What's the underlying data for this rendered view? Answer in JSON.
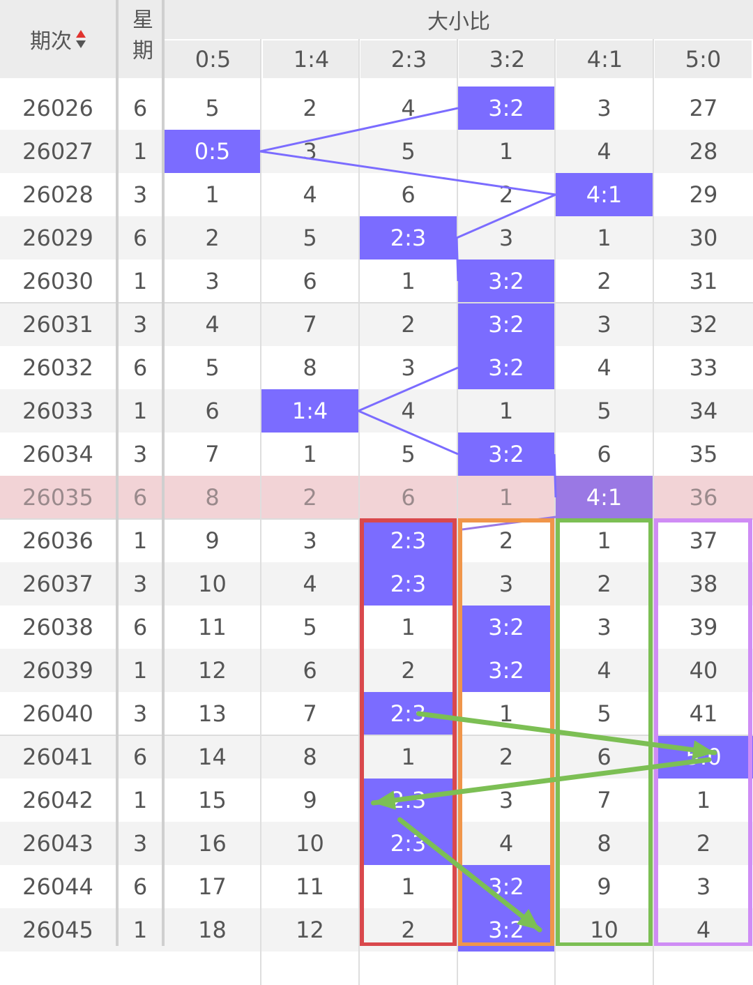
{
  "header": {
    "period_label": "期次",
    "week_label": "星期",
    "group_label": "大小比",
    "columns": [
      "0:5",
      "1:4",
      "2:3",
      "3:2",
      "4:1",
      "5:0"
    ]
  },
  "colors": {
    "accent": "#7b6cff",
    "highlight_row": "#f2d3d6",
    "box_red": "#d9484c",
    "box_orange": "#f0954a",
    "box_green": "#7cbf54",
    "box_purple": "#cf8cf5",
    "arrow_green": "#7cbf54",
    "trend_line": "#7b6cff"
  },
  "rows": [
    {
      "period": "26026",
      "week": "6",
      "cells": [
        "5",
        "2",
        "4",
        "3:2",
        "3",
        "27"
      ],
      "hit": 3
    },
    {
      "period": "26027",
      "week": "1",
      "cells": [
        "0:5",
        "3",
        "5",
        "1",
        "4",
        "28"
      ],
      "hit": 0
    },
    {
      "period": "26028",
      "week": "3",
      "cells": [
        "1",
        "4",
        "6",
        "2",
        "4:1",
        "29"
      ],
      "hit": 4
    },
    {
      "period": "26029",
      "week": "6",
      "cells": [
        "2",
        "5",
        "2:3",
        "3",
        "1",
        "30"
      ],
      "hit": 2
    },
    {
      "period": "26030",
      "week": "1",
      "cells": [
        "3",
        "6",
        "1",
        "3:2",
        "2",
        "31"
      ],
      "hit": 3
    },
    {
      "period": "26031",
      "week": "3",
      "cells": [
        "4",
        "7",
        "2",
        "3:2",
        "3",
        "32"
      ],
      "hit": 3
    },
    {
      "period": "26032",
      "week": "6",
      "cells": [
        "5",
        "8",
        "3",
        "3:2",
        "4",
        "33"
      ],
      "hit": 3
    },
    {
      "period": "26033",
      "week": "1",
      "cells": [
        "6",
        "1:4",
        "4",
        "1",
        "5",
        "34"
      ],
      "hit": 1
    },
    {
      "period": "26034",
      "week": "3",
      "cells": [
        "7",
        "1",
        "5",
        "3:2",
        "6",
        "35"
      ],
      "hit": 3
    },
    {
      "period": "26035",
      "week": "6",
      "cells": [
        "8",
        "2",
        "6",
        "1",
        "4:1",
        "36"
      ],
      "hit": 4,
      "highlight": true
    },
    {
      "period": "26036",
      "week": "1",
      "cells": [
        "9",
        "3",
        "2:3",
        "2",
        "1",
        "37"
      ],
      "hit": 2
    },
    {
      "period": "26037",
      "week": "3",
      "cells": [
        "10",
        "4",
        "2:3",
        "3",
        "2",
        "38"
      ],
      "hit": 2
    },
    {
      "period": "26038",
      "week": "6",
      "cells": [
        "11",
        "5",
        "1",
        "3:2",
        "3",
        "39"
      ],
      "hit": 3
    },
    {
      "period": "26039",
      "week": "1",
      "cells": [
        "12",
        "6",
        "2",
        "3:2",
        "4",
        "40"
      ],
      "hit": 3
    },
    {
      "period": "26040",
      "week": "3",
      "cells": [
        "13",
        "7",
        "2:3",
        "1",
        "5",
        "41"
      ],
      "hit": 2
    },
    {
      "period": "26041",
      "week": "6",
      "cells": [
        "14",
        "8",
        "1",
        "2",
        "6",
        "5:0"
      ],
      "hit": 5
    },
    {
      "period": "26042",
      "week": "1",
      "cells": [
        "15",
        "9",
        "2:3",
        "3",
        "7",
        "1"
      ],
      "hit": 2
    },
    {
      "period": "26043",
      "week": "3",
      "cells": [
        "16",
        "10",
        "2:3",
        "4",
        "8",
        "2"
      ],
      "hit": 2
    },
    {
      "period": "26044",
      "week": "6",
      "cells": [
        "17",
        "11",
        "1",
        "3:2",
        "9",
        "3"
      ],
      "hit": 3
    },
    {
      "period": "26045",
      "week": "1",
      "cells": [
        "18",
        "12",
        "2",
        "3:2",
        "10",
        "4"
      ],
      "hit": 3
    }
  ]
}
